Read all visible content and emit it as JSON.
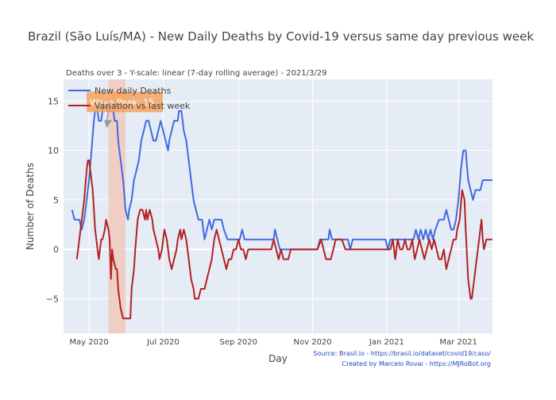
{
  "chart_data": {
    "type": "line",
    "title": "Brazil (São Luís/MA) - New Daily Deaths by Covid-19 versus same day previous week",
    "subtitle": "Deaths over 3 - Y-scale: linear (7-day rolling average) - 2021/3/29",
    "xlabel": "Day",
    "ylabel": "Number of Deaths",
    "xlim": [
      "2020-04-10",
      "2021-03-29"
    ],
    "ylim": [
      -8.5,
      17.2
    ],
    "grid": true,
    "legend_position": "top-left",
    "x_ticks": [
      {
        "date": "2020-05-01",
        "label": "May 2020"
      },
      {
        "date": "2020-07-01",
        "label": "Jul 2020"
      },
      {
        "date": "2020-09-01",
        "label": "Sep 2020"
      },
      {
        "date": "2020-11-01",
        "label": "Nov 2020"
      },
      {
        "date": "2021-01-01",
        "label": "Jan 2021"
      },
      {
        "date": "2021-03-01",
        "label": "Mar 2021"
      }
    ],
    "y_ticks": [
      -5,
      0,
      5,
      10,
      15
    ],
    "y_tick_labels": [
      "−5",
      "0",
      "5",
      "10",
      "15"
    ],
    "shaded_region": {
      "start": "2020-05-17",
      "end": "2020-05-31",
      "color": "#f2c4b6"
    },
    "annotation": {
      "text": "Wave Peak: 15",
      "date": "2020-05-18",
      "value": 15,
      "color": "#f5a35f"
    },
    "series": [
      {
        "name": "New daily Deaths",
        "color": "#4169e1",
        "points": [
          [
            "2020-04-17",
            4
          ],
          [
            "2020-04-19",
            3
          ],
          [
            "2020-04-23",
            3
          ],
          [
            "2020-04-25",
            2
          ],
          [
            "2020-04-27",
            3
          ],
          [
            "2020-04-29",
            5
          ],
          [
            "2020-05-01",
            7
          ],
          [
            "2020-05-03",
            10
          ],
          [
            "2020-05-05",
            13
          ],
          [
            "2020-05-06",
            14
          ],
          [
            "2020-05-08",
            14
          ],
          [
            "2020-05-09",
            13
          ],
          [
            "2020-05-11",
            13
          ],
          [
            "2020-05-12",
            14
          ],
          [
            "2020-05-13",
            15
          ],
          [
            "2020-05-14",
            15
          ],
          [
            "2020-05-16",
            14
          ],
          [
            "2020-05-17",
            15
          ],
          [
            "2020-05-18",
            14
          ],
          [
            "2020-05-19",
            14
          ],
          [
            "2020-05-20",
            14
          ],
          [
            "2020-05-21",
            14
          ],
          [
            "2020-05-22",
            13
          ],
          [
            "2020-05-24",
            13
          ],
          [
            "2020-05-25",
            11
          ],
          [
            "2020-05-27",
            9
          ],
          [
            "2020-05-29",
            7
          ],
          [
            "2020-05-31",
            4
          ],
          [
            "2020-06-02",
            3
          ],
          [
            "2020-06-03",
            4
          ],
          [
            "2020-06-05",
            5
          ],
          [
            "2020-06-07",
            7
          ],
          [
            "2020-06-09",
            8
          ],
          [
            "2020-06-11",
            9
          ],
          [
            "2020-06-13",
            11
          ],
          [
            "2020-06-15",
            12
          ],
          [
            "2020-06-17",
            13
          ],
          [
            "2020-06-19",
            13
          ],
          [
            "2020-06-21",
            12
          ],
          [
            "2020-06-23",
            11
          ],
          [
            "2020-06-25",
            11
          ],
          [
            "2020-06-27",
            12
          ],
          [
            "2020-06-29",
            13
          ],
          [
            "2020-07-01",
            12
          ],
          [
            "2020-07-03",
            11
          ],
          [
            "2020-07-05",
            10
          ],
          [
            "2020-07-06",
            11
          ],
          [
            "2020-07-08",
            12
          ],
          [
            "2020-07-10",
            13
          ],
          [
            "2020-07-13",
            13
          ],
          [
            "2020-07-14",
            14
          ],
          [
            "2020-07-16",
            14
          ],
          [
            "2020-07-18",
            12
          ],
          [
            "2020-07-20",
            11
          ],
          [
            "2020-07-22",
            9
          ],
          [
            "2020-07-24",
            7
          ],
          [
            "2020-07-26",
            5
          ],
          [
            "2020-07-28",
            4
          ],
          [
            "2020-07-30",
            3
          ],
          [
            "2020-08-02",
            3
          ],
          [
            "2020-08-04",
            1
          ],
          [
            "2020-08-06",
            2
          ],
          [
            "2020-08-08",
            3
          ],
          [
            "2020-08-10",
            2
          ],
          [
            "2020-08-12",
            3
          ],
          [
            "2020-08-18",
            3
          ],
          [
            "2020-08-20",
            2
          ],
          [
            "2020-08-23",
            1
          ],
          [
            "2020-08-26",
            1
          ],
          [
            "2020-09-02",
            1
          ],
          [
            "2020-09-04",
            2
          ],
          [
            "2020-09-06",
            1
          ],
          [
            "2020-09-30",
            1
          ],
          [
            "2020-10-01",
            2
          ],
          [
            "2020-10-03",
            1
          ],
          [
            "2020-10-05",
            0
          ],
          [
            "2020-11-05",
            0
          ],
          [
            "2020-11-07",
            1
          ],
          [
            "2020-11-14",
            1
          ],
          [
            "2020-11-15",
            2
          ],
          [
            "2020-11-17",
            1
          ],
          [
            "2020-11-30",
            1
          ],
          [
            "2020-12-02",
            0
          ],
          [
            "2020-12-04",
            1
          ],
          [
            "2020-12-31",
            1
          ],
          [
            "2021-01-02",
            0
          ],
          [
            "2021-01-04",
            1
          ],
          [
            "2021-01-23",
            1
          ],
          [
            "2021-01-25",
            2
          ],
          [
            "2021-01-27",
            1
          ],
          [
            "2021-01-29",
            2
          ],
          [
            "2021-01-31",
            1
          ],
          [
            "2021-02-02",
            2
          ],
          [
            "2021-02-04",
            1
          ],
          [
            "2021-02-06",
            2
          ],
          [
            "2021-02-08",
            1
          ],
          [
            "2021-02-10",
            2
          ],
          [
            "2021-02-13",
            3
          ],
          [
            "2021-02-15",
            3
          ],
          [
            "2021-02-17",
            3
          ],
          [
            "2021-02-19",
            4
          ],
          [
            "2021-02-21",
            3
          ],
          [
            "2021-02-23",
            2
          ],
          [
            "2021-02-25",
            2
          ],
          [
            "2021-02-27",
            3
          ],
          [
            "2021-02-28",
            4
          ],
          [
            "2021-03-01",
            5
          ],
          [
            "2021-03-03",
            8
          ],
          [
            "2021-03-05",
            10
          ],
          [
            "2021-03-07",
            10
          ],
          [
            "2021-03-09",
            7
          ],
          [
            "2021-03-11",
            6
          ],
          [
            "2021-03-13",
            5
          ],
          [
            "2021-03-15",
            6
          ],
          [
            "2021-03-19",
            6
          ],
          [
            "2021-03-21",
            7
          ],
          [
            "2021-03-29",
            7
          ]
        ]
      },
      {
        "name": "Variation vs last week",
        "color": "#b22222",
        "points": [
          [
            "2020-04-21",
            -1
          ],
          [
            "2020-04-24",
            2
          ],
          [
            "2020-04-27",
            5
          ],
          [
            "2020-04-29",
            8
          ],
          [
            "2020-04-30",
            9
          ],
          [
            "2020-05-01",
            9
          ],
          [
            "2020-05-02",
            8
          ],
          [
            "2020-05-04",
            6
          ],
          [
            "2020-05-06",
            2
          ],
          [
            "2020-05-08",
            0
          ],
          [
            "2020-05-09",
            -1
          ],
          [
            "2020-05-10",
            0
          ],
          [
            "2020-05-11",
            1
          ],
          [
            "2020-05-12",
            1
          ],
          [
            "2020-05-14",
            2
          ],
          [
            "2020-05-15",
            3
          ],
          [
            "2020-05-17",
            2
          ],
          [
            "2020-05-18",
            1
          ],
          [
            "2020-05-19",
            -3
          ],
          [
            "2020-05-20",
            0
          ],
          [
            "2020-05-21",
            -1
          ],
          [
            "2020-05-23",
            -2
          ],
          [
            "2020-05-24",
            -2
          ],
          [
            "2020-05-25",
            -4
          ],
          [
            "2020-05-27",
            -6
          ],
          [
            "2020-05-29",
            -7
          ],
          [
            "2020-06-04",
            -7
          ],
          [
            "2020-06-05",
            -4
          ],
          [
            "2020-06-07",
            -2
          ],
          [
            "2020-06-08",
            0
          ],
          [
            "2020-06-10",
            3
          ],
          [
            "2020-06-12",
            4
          ],
          [
            "2020-06-14",
            4
          ],
          [
            "2020-06-16",
            3
          ],
          [
            "2020-06-17",
            4
          ],
          [
            "2020-06-18",
            3
          ],
          [
            "2020-06-20",
            4
          ],
          [
            "2020-06-22",
            3
          ],
          [
            "2020-06-23",
            2
          ],
          [
            "2020-06-25",
            1
          ],
          [
            "2020-06-27",
            0
          ],
          [
            "2020-06-28",
            -1
          ],
          [
            "2020-06-30",
            0
          ],
          [
            "2020-07-01",
            1
          ],
          [
            "2020-07-02",
            2
          ],
          [
            "2020-07-04",
            1
          ],
          [
            "2020-07-05",
            0
          ],
          [
            "2020-07-06",
            -1
          ],
          [
            "2020-07-08",
            -2
          ],
          [
            "2020-07-10",
            -1
          ],
          [
            "2020-07-12",
            0
          ],
          [
            "2020-07-13",
            1
          ],
          [
            "2020-07-15",
            2
          ],
          [
            "2020-07-16",
            1
          ],
          [
            "2020-07-18",
            2
          ],
          [
            "2020-07-20",
            1
          ],
          [
            "2020-07-22",
            -1
          ],
          [
            "2020-07-24",
            -3
          ],
          [
            "2020-07-26",
            -4
          ],
          [
            "2020-07-27",
            -5
          ],
          [
            "2020-07-30",
            -5
          ],
          [
            "2020-08-01",
            -4
          ],
          [
            "2020-08-04",
            -4
          ],
          [
            "2020-08-06",
            -3
          ],
          [
            "2020-08-08",
            -2
          ],
          [
            "2020-08-10",
            -1
          ],
          [
            "2020-08-12",
            1
          ],
          [
            "2020-08-14",
            2
          ],
          [
            "2020-08-16",
            1
          ],
          [
            "2020-08-18",
            0
          ],
          [
            "2020-08-20",
            -1
          ],
          [
            "2020-08-22",
            -2
          ],
          [
            "2020-08-24",
            -1
          ],
          [
            "2020-08-26",
            -1
          ],
          [
            "2020-08-28",
            0
          ],
          [
            "2020-08-30",
            0
          ],
          [
            "2020-09-01",
            1
          ],
          [
            "2020-09-03",
            0
          ],
          [
            "2020-09-05",
            0
          ],
          [
            "2020-09-07",
            -1
          ],
          [
            "2020-09-09",
            0
          ],
          [
            "2020-09-28",
            0
          ],
          [
            "2020-09-30",
            1
          ],
          [
            "2020-10-02",
            0
          ],
          [
            "2020-10-04",
            -1
          ],
          [
            "2020-10-06",
            0
          ],
          [
            "2020-10-08",
            -1
          ],
          [
            "2020-10-12",
            -1
          ],
          [
            "2020-10-14",
            0
          ],
          [
            "2020-11-05",
            0
          ],
          [
            "2020-11-08",
            1
          ],
          [
            "2020-11-10",
            0
          ],
          [
            "2020-11-12",
            -1
          ],
          [
            "2020-11-16",
            -1
          ],
          [
            "2020-11-18",
            0
          ],
          [
            "2020-11-20",
            1
          ],
          [
            "2020-11-25",
            1
          ],
          [
            "2020-11-28",
            0
          ],
          [
            "2021-01-04",
            0
          ],
          [
            "2021-01-06",
            1
          ],
          [
            "2021-01-08",
            -1
          ],
          [
            "2021-01-10",
            1
          ],
          [
            "2021-01-12",
            0
          ],
          [
            "2021-01-14",
            0
          ],
          [
            "2021-01-16",
            1
          ],
          [
            "2021-01-18",
            0
          ],
          [
            "2021-01-20",
            0
          ],
          [
            "2021-01-22",
            1
          ],
          [
            "2021-01-24",
            -1
          ],
          [
            "2021-01-26",
            0
          ],
          [
            "2021-01-28",
            1
          ],
          [
            "2021-01-30",
            0
          ],
          [
            "2021-02-01",
            -1
          ],
          [
            "2021-02-03",
            0
          ],
          [
            "2021-02-05",
            1
          ],
          [
            "2021-02-07",
            0
          ],
          [
            "2021-02-09",
            1
          ],
          [
            "2021-02-11",
            0
          ],
          [
            "2021-02-13",
            -1
          ],
          [
            "2021-02-15",
            -1
          ],
          [
            "2021-02-17",
            0
          ],
          [
            "2021-02-19",
            -2
          ],
          [
            "2021-02-21",
            -1
          ],
          [
            "2021-02-23",
            0
          ],
          [
            "2021-02-25",
            1
          ],
          [
            "2021-02-27",
            1
          ],
          [
            "2021-02-28",
            2
          ],
          [
            "2021-03-02",
            3
          ],
          [
            "2021-03-04",
            6
          ],
          [
            "2021-03-06",
            5
          ],
          [
            "2021-03-07",
            2
          ],
          [
            "2021-03-09",
            -3
          ],
          [
            "2021-03-11",
            -5
          ],
          [
            "2021-03-12",
            -5
          ],
          [
            "2021-03-14",
            -3
          ],
          [
            "2021-03-16",
            -1
          ],
          [
            "2021-03-18",
            1
          ],
          [
            "2021-03-20",
            3
          ],
          [
            "2021-03-21",
            1
          ],
          [
            "2021-03-22",
            0
          ],
          [
            "2021-03-24",
            1
          ],
          [
            "2021-03-29",
            1
          ]
        ]
      }
    ]
  },
  "source": {
    "line1": "Source: Brasil.io - https://brasil.io/dataset/covid19/caso/",
    "line2": "Created by Marcelo Rovai - https://MJRoBot.org"
  }
}
